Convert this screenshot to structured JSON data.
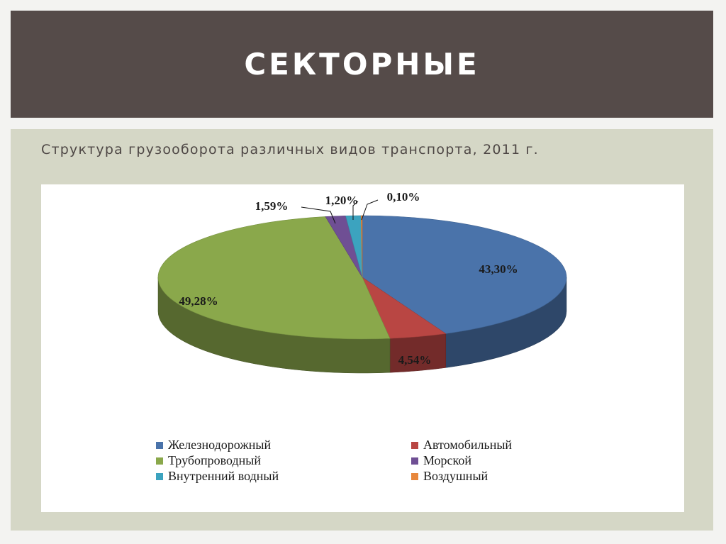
{
  "slide": {
    "title": "СЕКТОРНЫЕ",
    "subtitle": "Структура грузооборота различных видов транспорта, 2011 г."
  },
  "colors": {
    "title_bar": "#554b49",
    "panel": "#d5d7c6"
  },
  "chart_data": {
    "type": "pie",
    "style": "3d",
    "title": "",
    "categories": [
      "Железнодорожный",
      "Автомобильный",
      "Трубопроводный",
      "Морской",
      "Внутренний водный",
      "Воздушный"
    ],
    "values": [
      43.3,
      4.54,
      49.28,
      1.59,
      1.2,
      0.1
    ],
    "labels": [
      "43,30%",
      "4,54%",
      "49,28%",
      "1,59%",
      "1,20%",
      "0,10%"
    ],
    "colors": [
      "#4a73aa",
      "#b94643",
      "#8aa84b",
      "#6f4f94",
      "#3ca3bf",
      "#e8873c"
    ],
    "legend_position": "bottom"
  }
}
